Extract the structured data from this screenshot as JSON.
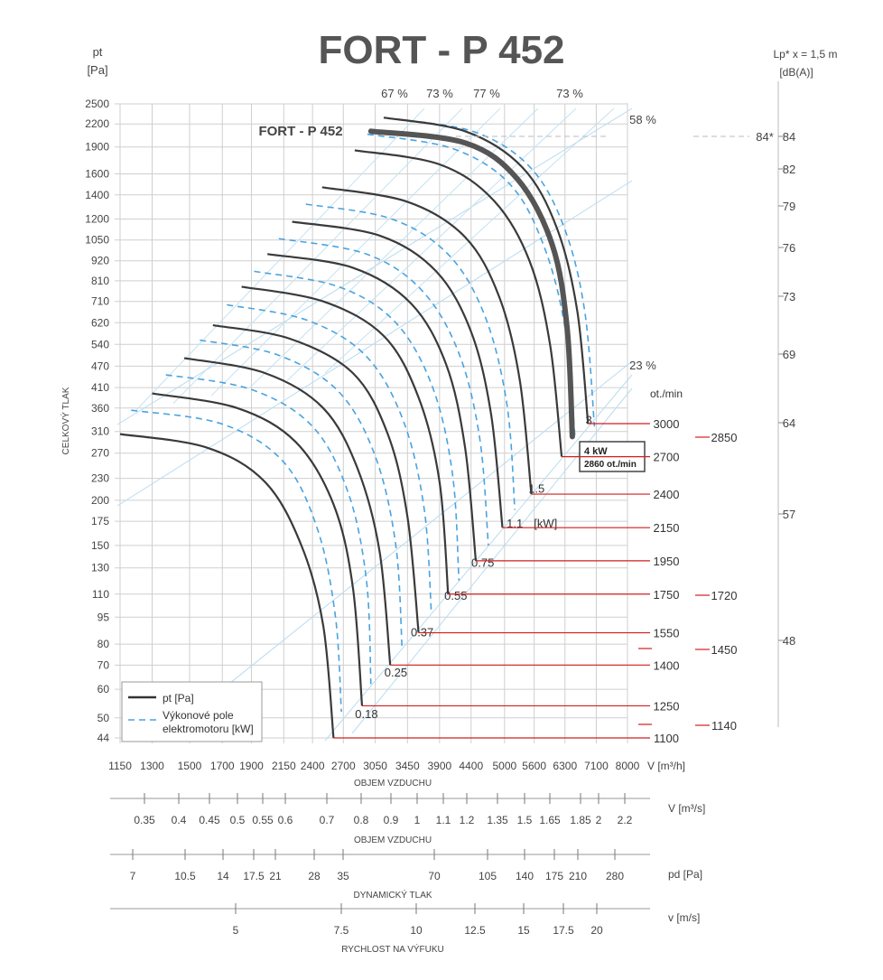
{
  "chart_data": {
    "type": "line",
    "title": "FORT - P 452",
    "y_unit_label": "pt",
    "y_unit": "[Pa]",
    "ylabel": "CELKOVÝ TLAK",
    "xlabel": "OBJEM VZDUCHU",
    "x_unit_label": "V [m³/h]",
    "x_scale": "log",
    "y_scale": "log",
    "xlim": [
      1150,
      8000
    ],
    "ylim": [
      44,
      2500
    ],
    "grid": true,
    "x_ticks": [
      1150,
      1300,
      1500,
      1700,
      1900,
      2150,
      2400,
      2700,
      3050,
      3450,
      3900,
      4400,
      5000,
      5600,
      6300,
      7100,
      8000
    ],
    "y_ticks": [
      2500,
      2200,
      1900,
      1600,
      1400,
      1200,
      1050,
      920,
      810,
      710,
      620,
      540,
      470,
      410,
      360,
      310,
      270,
      230,
      200,
      175,
      150,
      130,
      110,
      95,
      80,
      70,
      60,
      50,
      44
    ],
    "efficiency_labels": [
      "67 %",
      "73 %",
      "77 %",
      "73 %",
      "58 %",
      "23 %"
    ],
    "series_label": "FORT - P 452",
    "legend": {
      "solid": "pt [Pa]",
      "dashed_line1": "Výkonové pole",
      "dashed_line2": "elektromotoru  [kW]",
      "placement": "bottom-left"
    },
    "curves": [
      {
        "rpm": 1100,
        "points": [
          [
            1150,
            305
          ],
          [
            1600,
            280
          ],
          [
            2000,
            225
          ],
          [
            2300,
            150
          ],
          [
            2500,
            90
          ],
          [
            2600,
            44
          ]
        ]
      },
      {
        "rpm": 1250,
        "points": [
          [
            1300,
            395
          ],
          [
            1800,
            360
          ],
          [
            2250,
            290
          ],
          [
            2600,
            195
          ],
          [
            2800,
            115
          ],
          [
            2900,
            54
          ]
        ]
      },
      {
        "rpm": 1400,
        "points": [
          [
            1470,
            495
          ],
          [
            2000,
            450
          ],
          [
            2500,
            360
          ],
          [
            2850,
            245
          ],
          [
            3100,
            145
          ],
          [
            3230,
            70
          ]
        ]
      },
      {
        "rpm": 1550,
        "points": [
          [
            1640,
            610
          ],
          [
            2200,
            560
          ],
          [
            2800,
            450
          ],
          [
            3200,
            305
          ],
          [
            3450,
            180
          ],
          [
            3600,
            86
          ]
        ]
      },
      {
        "rpm": 1750,
        "points": [
          [
            1830,
            780
          ],
          [
            2500,
            710
          ],
          [
            3150,
            570
          ],
          [
            3600,
            385
          ],
          [
            3900,
            225
          ],
          [
            4030,
            110
          ]
        ]
      },
      {
        "rpm": 1950,
        "points": [
          [
            2020,
            960
          ],
          [
            2800,
            880
          ],
          [
            3500,
            700
          ],
          [
            4000,
            475
          ],
          [
            4300,
            280
          ],
          [
            4480,
            136
          ]
        ]
      },
      {
        "rpm": 2150,
        "points": [
          [
            2220,
            1180
          ],
          [
            3100,
            1080
          ],
          [
            3850,
            860
          ],
          [
            4400,
            585
          ],
          [
            4750,
            345
          ],
          [
            4960,
            168
          ]
        ]
      },
      {
        "rpm": 2400,
        "points": [
          [
            2490,
            1470
          ],
          [
            3450,
            1340
          ],
          [
            4300,
            1070
          ],
          [
            4900,
            730
          ],
          [
            5300,
            430
          ],
          [
            5540,
            208
          ]
        ]
      },
      {
        "rpm": 2700,
        "points": [
          [
            2820,
            1860
          ],
          [
            3900,
            1700
          ],
          [
            4800,
            1350
          ],
          [
            5500,
            920
          ],
          [
            5950,
            540
          ],
          [
            6220,
            264
          ]
        ]
      },
      {
        "rpm": 3000,
        "points": [
          [
            3150,
            2290
          ],
          [
            4300,
            2100
          ],
          [
            5350,
            1670
          ],
          [
            6100,
            1140
          ],
          [
            6600,
            670
          ],
          [
            6880,
            326
          ]
        ]
      }
    ],
    "motor_curves": [
      {
        "kw": 0.18,
        "points": [
          [
            1200,
            355
          ],
          [
            1700,
            325
          ],
          [
            2150,
            255
          ],
          [
            2450,
            165
          ],
          [
            2620,
            95
          ],
          [
            2680,
            52
          ]
        ]
      },
      {
        "kw": 0.25,
        "points": [
          [
            1370,
            445
          ],
          [
            1900,
            405
          ],
          [
            2400,
            320
          ],
          [
            2750,
            210
          ],
          [
            2950,
            120
          ],
          [
            3000,
            62
          ]
        ]
      },
      {
        "kw": 0.37,
        "points": [
          [
            1560,
            555
          ],
          [
            2100,
            505
          ],
          [
            2650,
            400
          ],
          [
            3050,
            265
          ],
          [
            3300,
            150
          ],
          [
            3380,
            77
          ]
        ]
      },
      {
        "kw": 0.55,
        "points": [
          [
            1730,
            695
          ],
          [
            2350,
            630
          ],
          [
            2950,
            500
          ],
          [
            3400,
            330
          ],
          [
            3680,
            188
          ],
          [
            3780,
            97
          ]
        ]
      },
      {
        "kw": 0.75,
        "points": [
          [
            1920,
            860
          ],
          [
            2650,
            780
          ],
          [
            3300,
            620
          ],
          [
            3800,
            410
          ],
          [
            4100,
            235
          ],
          [
            4200,
            120
          ]
        ]
      },
      {
        "kw": 1.1,
        "points": [
          [
            2110,
            1060
          ],
          [
            2950,
            960
          ],
          [
            3650,
            760
          ],
          [
            4200,
            510
          ],
          [
            4550,
            295
          ],
          [
            4700,
            150
          ]
        ]
      },
      {
        "kw": 1.5,
        "points": [
          [
            2340,
            1320
          ],
          [
            3250,
            1200
          ],
          [
            4050,
            950
          ],
          [
            4650,
            640
          ],
          [
            5050,
            365
          ],
          [
            5200,
            188
          ]
        ]
      },
      {
        "kw": 3,
        "points": [
          [
            2960,
            2060
          ],
          [
            4100,
            1880
          ],
          [
            5100,
            1500
          ],
          [
            5800,
            1020
          ],
          [
            6300,
            600
          ],
          [
            6550,
            295
          ]
        ]
      },
      {
        "kw": 4,
        "points": [
          [
            3320,
            2270
          ],
          [
            4500,
            2080
          ],
          [
            5550,
            1650
          ],
          [
            6300,
            1120
          ],
          [
            6800,
            660
          ],
          [
            7050,
            320
          ]
        ]
      }
    ],
    "highlight_curve": {
      "points": [
        [
          3000,
          2100
        ],
        [
          4300,
          1950
        ],
        [
          5250,
          1550
        ],
        [
          6000,
          1020
        ],
        [
          6350,
          600
        ],
        [
          6480,
          300
        ]
      ]
    },
    "highlight_box": [
      "4 kW",
      "2860 ot./min"
    ],
    "kw_labels": [
      {
        "text": "0.18",
        "x": 2950,
        "y": 50
      },
      {
        "text": "0.25",
        "x": 3300,
        "y": 65
      },
      {
        "text": "0.37",
        "x": 3650,
        "y": 84
      },
      {
        "text": "0.55",
        "x": 4150,
        "y": 106
      },
      {
        "text": "0.75",
        "x": 4600,
        "y": 131
      },
      {
        "text": "1.1",
        "x": 5200,
        "y": 168
      },
      {
        "text": "[kW]",
        "x": 5850,
        "y": 168
      },
      {
        "text": "1.5",
        "x": 5650,
        "y": 210
      },
      {
        "text": "3",
        "x": 6900,
        "y": 325
      }
    ],
    "rpm_unit": "ot./min",
    "rpm_values": [
      "3000",
      "2700",
      "2400",
      "2150",
      "1950",
      "1750",
      "1550",
      "1400",
      "1250",
      "1100"
    ],
    "rpm_alt_values": [
      "2850",
      "1720",
      "1450",
      "1140"
    ],
    "sound_unit_line1": "Lp* x = 1,5 m",
    "sound_unit_line2": "[dB(A)]",
    "sound_values": [
      "84",
      "82",
      "79",
      "76",
      "73",
      "69",
      "64",
      "57",
      "48"
    ],
    "sound_marker": "84*",
    "flow_m3s": {
      "unit": "V  [m³/s]",
      "label": "OBJEM VZDUCHU",
      "ticks": [
        "0.35",
        "0.4",
        "0.45",
        "0.5",
        "0.55",
        "0.6",
        "0.7",
        "0.8",
        "0.9",
        "1",
        "1.1",
        "1.2",
        "1.35",
        "1.5",
        "1.65",
        "1.85",
        "2",
        "2.2"
      ]
    },
    "dynamic_pressure": {
      "unit": "pd  [Pa]",
      "label": "DYNAMICKÝ TLAK",
      "ticks": [
        "7",
        "10.5",
        "14",
        "17.5",
        "21",
        "28",
        "35",
        "70",
        "105",
        "140",
        "175",
        "210",
        "280"
      ]
    },
    "outlet_velocity": {
      "unit": "v  [m/s]",
      "label": "RYCHLOST NA VÝFUKU",
      "ticks": [
        "5",
        "7.5",
        "10",
        "12.5",
        "15",
        "17.5",
        "20"
      ]
    }
  }
}
